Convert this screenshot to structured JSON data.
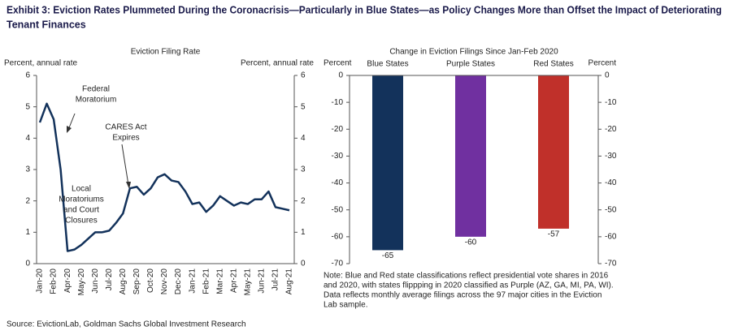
{
  "title": [
    "Exhibit 3: Eviction Rates Plummeted During the Coronacrisis—Particularly in Blue States—as Policy Changes More than Offset the Impact of Deteriorating",
    "Tenant Finances"
  ],
  "source": "Source: EvictionLab, Goldman Sachs Global Investment Research",
  "chart_data": [
    {
      "type": "line",
      "title": "Eviction Filing Rate",
      "ylabel": "Percent, annual rate",
      "y2label": "Percent, annual rate",
      "categories": [
        "Jan-20",
        null,
        "Feb-20",
        null,
        "Apr-20",
        null,
        "May-20",
        null,
        "Jun-20",
        null,
        "Jul-20",
        null,
        "Aug-20",
        null,
        "Sep-20",
        null,
        "Oct-20",
        null,
        "Nov-20",
        null,
        "Dec-20",
        null,
        "Jan-21",
        null,
        "Feb-21",
        null,
        "Mar-21",
        null,
        "Apr-21",
        null,
        "May-21",
        null,
        "Jun-21",
        null,
        "Jul-21",
        null,
        "Aug-21"
      ],
      "series": [
        {
          "name": "Eviction Filing Rate",
          "color": "#13325b",
          "values": [
            4.5,
            5.1,
            4.6,
            3.0,
            0.4,
            0.45,
            0.6,
            0.8,
            1.0,
            1.0,
            1.05,
            1.3,
            1.6,
            2.4,
            2.45,
            2.2,
            2.4,
            2.75,
            2.85,
            2.65,
            2.6,
            2.3,
            1.9,
            1.95,
            1.65,
            1.85,
            2.15,
            2.0,
            1.85,
            1.95,
            1.9,
            2.05,
            2.05,
            2.3,
            1.8,
            1.75,
            1.7
          ]
        }
      ],
      "ylim": [
        0,
        6
      ],
      "yticks": [
        0,
        1,
        2,
        3,
        4,
        5,
        6
      ],
      "y2lim": [
        0,
        6
      ],
      "y2ticks": [
        0,
        1,
        2,
        3,
        4,
        5,
        6
      ],
      "annotations": [
        [
          "Federal",
          "Moratorium"
        ],
        [
          "CARES Act",
          "Expires"
        ],
        [
          "Local",
          "Moratoriums",
          "and Court",
          "Closures"
        ]
      ]
    },
    {
      "type": "bar",
      "title": "Change in Eviction Filings Since Jan-Feb 2020",
      "ylabel": "Percent",
      "y2label": "Percent",
      "categories": [
        "Blue States",
        "Purple States",
        "Red States"
      ],
      "values": [
        -65,
        -60,
        -57
      ],
      "colors": [
        "#13325b",
        "#7030a0",
        "#c0302a"
      ],
      "ylim": [
        -70,
        0
      ],
      "yticks": [
        0,
        -10,
        -20,
        -30,
        -40,
        -50,
        -60,
        -70
      ],
      "y2lim": [
        -70,
        0
      ],
      "y2ticks": [
        0,
        -10,
        -20,
        -30,
        -40,
        -50,
        -60,
        -70
      ],
      "note": [
        "Note: Blue and Red state classifications reflect presidential vote shares in 2016",
        "and 2020, with states flippping in 2020 classified as Purple (AZ, GA, MI, PA, WI).",
        "Data reflects monthly average filings across the 97 major cities in the Eviction",
        "Lab sample."
      ]
    }
  ]
}
